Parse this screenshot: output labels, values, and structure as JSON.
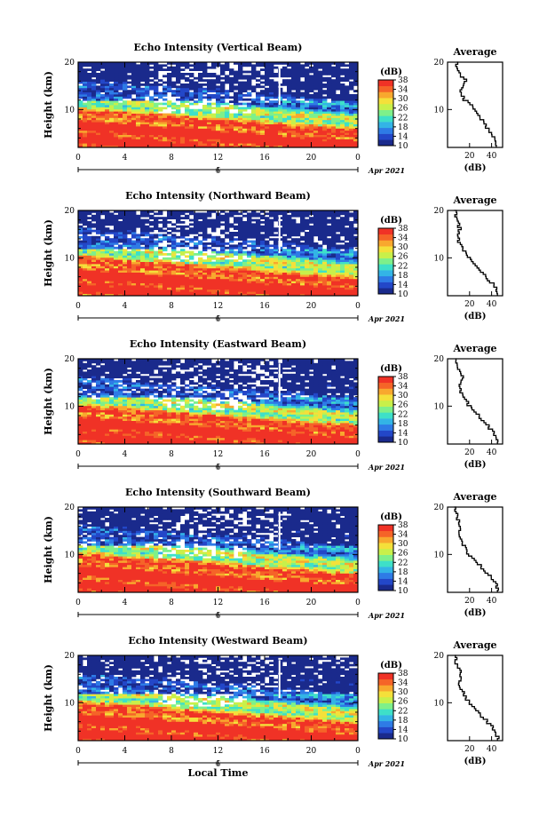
{
  "chart_data": {
    "type": "heatmap",
    "shared": {
      "x_ticks": [
        "0",
        "4",
        "8",
        "12",
        "16",
        "20",
        "0"
      ],
      "xlim": [
        0,
        24
      ],
      "date_tick": "6",
      "date_label": "Apr 2021",
      "xlabel": "Local Time",
      "y_ticks": [
        "10",
        "20"
      ],
      "ylim": [
        2,
        20
      ],
      "ylabel": "Height (km)",
      "colorbar_unit": "(dB)",
      "colorbar_ticks": [
        "10",
        "14",
        "18",
        "22",
        "26",
        "30",
        "34",
        "38"
      ],
      "colorbar_range": [
        10,
        38
      ],
      "profile_title": "Average",
      "profile_xlabel": "(dB)",
      "profile_xlim": [
        0,
        50
      ],
      "colors": [
        "#1a2a8c",
        "#2347c8",
        "#2e7be6",
        "#33b4e6",
        "#3ee0c8",
        "#7ef08a",
        "#c8f04a",
        "#f4e03a",
        "#f8a82e",
        "#f56428",
        "#f03226"
      ]
    },
    "panels": [
      {
        "title": "Echo Intensity (Vertical Beam)",
        "profile_x_ticks": [
          "20",
          "40"
        ],
        "profile": {
          "height": [
            2,
            4,
            6,
            8,
            10,
            12,
            14,
            16,
            18,
            20
          ],
          "db": [
            45,
            42,
            36,
            30,
            24,
            15,
            12,
            16,
            9,
            8
          ]
        }
      },
      {
        "title": "Echo Intensity (Northward Beam)",
        "profile_x_ticks": [
          "20",
          "40"
        ],
        "profile": {
          "height": [
            2,
            4,
            6,
            8,
            10,
            12,
            14,
            16,
            18,
            20
          ],
          "db": [
            46,
            42,
            34,
            26,
            19,
            13,
            9,
            11,
            8,
            7
          ]
        }
      },
      {
        "title": "Echo Intensity (Eastward Beam)",
        "profile_x_ticks": [
          "20",
          "40"
        ],
        "profile": {
          "height": [
            2,
            4,
            6,
            8,
            10,
            12,
            14,
            16,
            18,
            20
          ],
          "db": [
            46,
            43,
            35,
            27,
            19,
            14,
            10,
            13,
            8,
            7
          ]
        }
      },
      {
        "title": "Echo Intensity (Southward Beam)",
        "profile_x_ticks": [
          "20",
          "40"
        ],
        "profile": {
          "height": [
            2,
            4,
            6,
            8,
            10,
            12,
            14,
            16,
            18,
            20
          ],
          "db": [
            46,
            43,
            35,
            27,
            19,
            14,
            10,
            12,
            8,
            7
          ]
        }
      },
      {
        "title": "Echo Intensity (Westward Beam)",
        "profile_x_ticks": [
          "20",
          "40"
        ],
        "profile": {
          "height": [
            2,
            4,
            6,
            8,
            10,
            12,
            14,
            16,
            18,
            20
          ],
          "db": [
            46,
            43,
            35,
            27,
            19,
            14,
            10,
            13,
            8,
            7
          ]
        }
      }
    ]
  }
}
